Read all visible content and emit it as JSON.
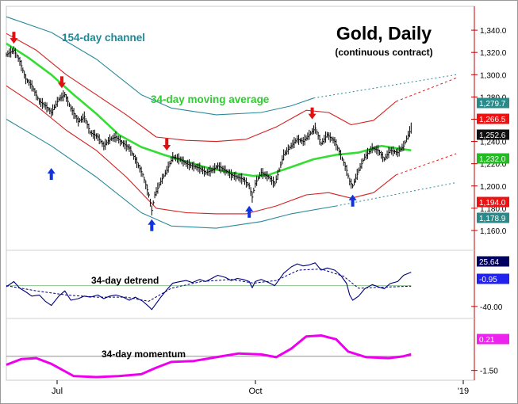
{
  "chart_data": {
    "type": "line",
    "title": "Gold, Daily",
    "subtitle": "(continuous contract)",
    "annotations": {
      "channel": "154-day channel",
      "moving_average": "34-day moving average",
      "detrend": "34-day detrend",
      "momentum": "34-day momentum"
    },
    "x_ticks": [
      "Jul",
      "Oct",
      "'19"
    ],
    "price_panel": {
      "ylim": [
        1150,
        1360
      ],
      "y_ticks": [
        "1,340.0",
        "1,320.0",
        "1,300.0",
        "1,280.0",
        "1,260.0",
        "1,240.0",
        "1,220.0",
        "1,200.0",
        "1,180.0",
        "1,160.0"
      ],
      "last_values": {
        "channel_upper": "1,279.7",
        "band_upper": "1,266.5",
        "price": "1,252.6",
        "moving_average": "1,232.0",
        "band_lower": "1,194.0",
        "channel_lower": "1,178.9"
      },
      "price_path": [
        [
          0,
          1318
        ],
        [
          5,
          1322
        ],
        [
          9,
          1312
        ],
        [
          13,
          1296
        ],
        [
          17,
          1290
        ],
        [
          22,
          1276
        ],
        [
          26,
          1272
        ],
        [
          30,
          1266
        ],
        [
          35,
          1278
        ],
        [
          39,
          1282
        ],
        [
          43,
          1270
        ],
        [
          48,
          1258
        ],
        [
          52,
          1262
        ],
        [
          56,
          1248
        ],
        [
          61,
          1244
        ],
        [
          65,
          1236
        ],
        [
          69,
          1242
        ],
        [
          73,
          1244
        ],
        [
          78,
          1238
        ],
        [
          82,
          1234
        ],
        [
          86,
          1224
        ],
        [
          91,
          1210
        ],
        [
          95,
          1192
        ],
        [
          97,
          1178
        ],
        [
          99,
          1192
        ],
        [
          103,
          1204
        ],
        [
          107,
          1214
        ],
        [
          111,
          1226
        ],
        [
          116,
          1224
        ],
        [
          120,
          1220
        ],
        [
          124,
          1218
        ],
        [
          129,
          1216
        ],
        [
          133,
          1212
        ],
        [
          137,
          1214
        ],
        [
          141,
          1218
        ],
        [
          146,
          1214
        ],
        [
          150,
          1210
        ],
        [
          154,
          1208
        ],
        [
          158,
          1206
        ],
        [
          162,
          1200
        ],
        [
          164,
          1190
        ],
        [
          166,
          1202
        ],
        [
          170,
          1212
        ],
        [
          175,
          1208
        ],
        [
          179,
          1202
        ],
        [
          181,
          1210
        ],
        [
          185,
          1228
        ],
        [
          190,
          1236
        ],
        [
          194,
          1242
        ],
        [
          198,
          1240
        ],
        [
          202,
          1246
        ],
        [
          206,
          1252
        ],
        [
          210,
          1238
        ],
        [
          214,
          1246
        ],
        [
          219,
          1240
        ],
        [
          223,
          1228
        ],
        [
          227,
          1214
        ],
        [
          229,
          1204
        ],
        [
          231,
          1200
        ],
        [
          235,
          1214
        ],
        [
          239,
          1226
        ],
        [
          244,
          1234
        ],
        [
          248,
          1232
        ],
        [
          252,
          1224
        ],
        [
          256,
          1232
        ],
        [
          261,
          1230
        ],
        [
          265,
          1236
        ],
        [
          270,
          1252
        ]
      ],
      "moving_average_path": [
        [
          0,
          1328
        ],
        [
          15,
          1315
        ],
        [
          30,
          1300
        ],
        [
          45,
          1282
        ],
        [
          60,
          1265
        ],
        [
          75,
          1246
        ],
        [
          90,
          1235
        ],
        [
          105,
          1228
        ],
        [
          120,
          1222
        ],
        [
          135,
          1216
        ],
        [
          150,
          1212
        ],
        [
          165,
          1209
        ],
        [
          175,
          1210
        ],
        [
          190,
          1217
        ],
        [
          205,
          1224
        ],
        [
          220,
          1228
        ],
        [
          235,
          1230
        ],
        [
          250,
          1236
        ],
        [
          270,
          1232
        ]
      ],
      "band_upper_path": [
        [
          0,
          1337
        ],
        [
          20,
          1322
        ],
        [
          40,
          1300
        ],
        [
          60,
          1282
        ],
        [
          80,
          1264
        ],
        [
          100,
          1244
        ],
        [
          120,
          1241
        ],
        [
          140,
          1240
        ],
        [
          160,
          1242
        ],
        [
          180,
          1253
        ],
        [
          200,
          1268
        ],
        [
          215,
          1266
        ],
        [
          230,
          1255
        ],
        [
          245,
          1259
        ],
        [
          260,
          1276
        ]
      ],
      "band_upper_proj": [
        [
          260,
          1276
        ],
        [
          300,
          1297
        ]
      ],
      "band_lower_path": [
        [
          0,
          1290
        ],
        [
          20,
          1272
        ],
        [
          40,
          1250
        ],
        [
          60,
          1232
        ],
        [
          80,
          1208
        ],
        [
          100,
          1180
        ],
        [
          120,
          1176
        ],
        [
          140,
          1175
        ],
        [
          160,
          1175
        ],
        [
          180,
          1182
        ],
        [
          200,
          1192
        ],
        [
          215,
          1194
        ],
        [
          230,
          1189
        ],
        [
          245,
          1194
        ],
        [
          260,
          1210
        ]
      ],
      "band_lower_proj": [
        [
          260,
          1210
        ],
        [
          300,
          1229
        ]
      ],
      "channel_upper_path": [
        [
          0,
          1352
        ],
        [
          30,
          1338
        ],
        [
          60,
          1314
        ],
        [
          90,
          1282
        ],
        [
          110,
          1270
        ],
        [
          140,
          1264
        ],
        [
          170,
          1266
        ],
        [
          190,
          1272
        ],
        [
          205,
          1279
        ]
      ],
      "channel_upper_proj": [
        [
          205,
          1279
        ],
        [
          300,
          1300
        ]
      ],
      "channel_lower_path": [
        [
          0,
          1260
        ],
        [
          30,
          1236
        ],
        [
          60,
          1208
        ],
        [
          90,
          1176
        ],
        [
          110,
          1164
        ],
        [
          140,
          1162
        ],
        [
          170,
          1168
        ],
        [
          190,
          1175
        ],
        [
          220,
          1182
        ]
      ],
      "channel_lower_proj": [
        [
          220,
          1182
        ],
        [
          300,
          1203
        ]
      ],
      "down_arrows": [
        [
          5,
          1330
        ],
        [
          37,
          1290
        ],
        [
          107,
          1234
        ],
        [
          204,
          1262
        ]
      ],
      "up_arrows": [
        [
          30,
          1214
        ],
        [
          97,
          1168
        ],
        [
          162,
          1180
        ],
        [
          231,
          1190
        ]
      ]
    },
    "detrend_panel": {
      "ylim": [
        -60,
        65
      ],
      "y_ticks": [
        "-40.00"
      ],
      "last_values": {
        "detrend": "25.64",
        "average": "-0.95"
      },
      "zero_line": 0,
      "detrend_path": [
        [
          0,
          -2
        ],
        [
          5,
          8
        ],
        [
          9,
          -5
        ],
        [
          13,
          -12
        ],
        [
          17,
          -20
        ],
        [
          22,
          -18
        ],
        [
          26,
          -30
        ],
        [
          30,
          -38
        ],
        [
          35,
          -20
        ],
        [
          39,
          -10
        ],
        [
          43,
          -28
        ],
        [
          48,
          -25
        ],
        [
          52,
          -20
        ],
        [
          56,
          -22
        ],
        [
          61,
          -18
        ],
        [
          65,
          -25
        ],
        [
          69,
          -20
        ],
        [
          73,
          -18
        ],
        [
          78,
          -22
        ],
        [
          82,
          -28
        ],
        [
          86,
          -22
        ],
        [
          91,
          -30
        ],
        [
          95,
          -40
        ],
        [
          97,
          -46
        ],
        [
          99,
          -38
        ],
        [
          103,
          -22
        ],
        [
          107,
          -8
        ],
        [
          111,
          5
        ],
        [
          116,
          8
        ],
        [
          120,
          10
        ],
        [
          124,
          6
        ],
        [
          129,
          12
        ],
        [
          133,
          8
        ],
        [
          137,
          14
        ],
        [
          141,
          20
        ],
        [
          146,
          16
        ],
        [
          150,
          10
        ],
        [
          154,
          14
        ],
        [
          158,
          12
        ],
        [
          162,
          8
        ],
        [
          164,
          -4
        ],
        [
          166,
          8
        ],
        [
          170,
          12
        ],
        [
          175,
          6
        ],
        [
          179,
          0
        ],
        [
          181,
          8
        ],
        [
          185,
          24
        ],
        [
          190,
          36
        ],
        [
          194,
          42
        ],
        [
          198,
          38
        ],
        [
          202,
          40
        ],
        [
          206,
          44
        ],
        [
          210,
          30
        ],
        [
          214,
          34
        ],
        [
          219,
          30
        ],
        [
          223,
          20
        ],
        [
          227,
          4
        ],
        [
          229,
          -18
        ],
        [
          231,
          -28
        ],
        [
          235,
          -20
        ],
        [
          239,
          -6
        ],
        [
          244,
          2
        ],
        [
          248,
          -2
        ],
        [
          252,
          -6
        ],
        [
          256,
          4
        ],
        [
          261,
          8
        ],
        [
          265,
          20
        ],
        [
          270,
          26
        ]
      ],
      "average_path": [
        [
          0,
          0
        ],
        [
          20,
          -10
        ],
        [
          40,
          -18
        ],
        [
          60,
          -22
        ],
        [
          80,
          -22
        ],
        [
          95,
          -30
        ],
        [
          110,
          -5
        ],
        [
          130,
          8
        ],
        [
          150,
          12
        ],
        [
          165,
          5
        ],
        [
          180,
          10
        ],
        [
          195,
          30
        ],
        [
          210,
          32
        ],
        [
          225,
          18
        ],
        [
          235,
          -5
        ],
        [
          250,
          -3
        ],
        [
          270,
          -1
        ]
      ]
    },
    "momentum_panel": {
      "ylim": [
        -2.2,
        4.0
      ],
      "y_ticks": [
        "-1.50"
      ],
      "last_value": "0.21",
      "zero_line": 0,
      "momentum_path": [
        [
          0,
          -0.9
        ],
        [
          10,
          -0.3
        ],
        [
          20,
          -0.2
        ],
        [
          30,
          -0.8
        ],
        [
          45,
          -2.1
        ],
        [
          60,
          -2.2
        ],
        [
          75,
          -2.1
        ],
        [
          90,
          -1.9
        ],
        [
          100,
          -1.2
        ],
        [
          110,
          -0.6
        ],
        [
          125,
          -0.5
        ],
        [
          140,
          -0.1
        ],
        [
          155,
          0.3
        ],
        [
          170,
          0.2
        ],
        [
          180,
          -0.1
        ],
        [
          190,
          0.8
        ],
        [
          200,
          2.1
        ],
        [
          210,
          2.2
        ],
        [
          220,
          1.8
        ],
        [
          228,
          0.5
        ],
        [
          240,
          -0.1
        ],
        [
          255,
          -0.2
        ],
        [
          265,
          0.0
        ],
        [
          270,
          0.21
        ]
      ]
    }
  }
}
